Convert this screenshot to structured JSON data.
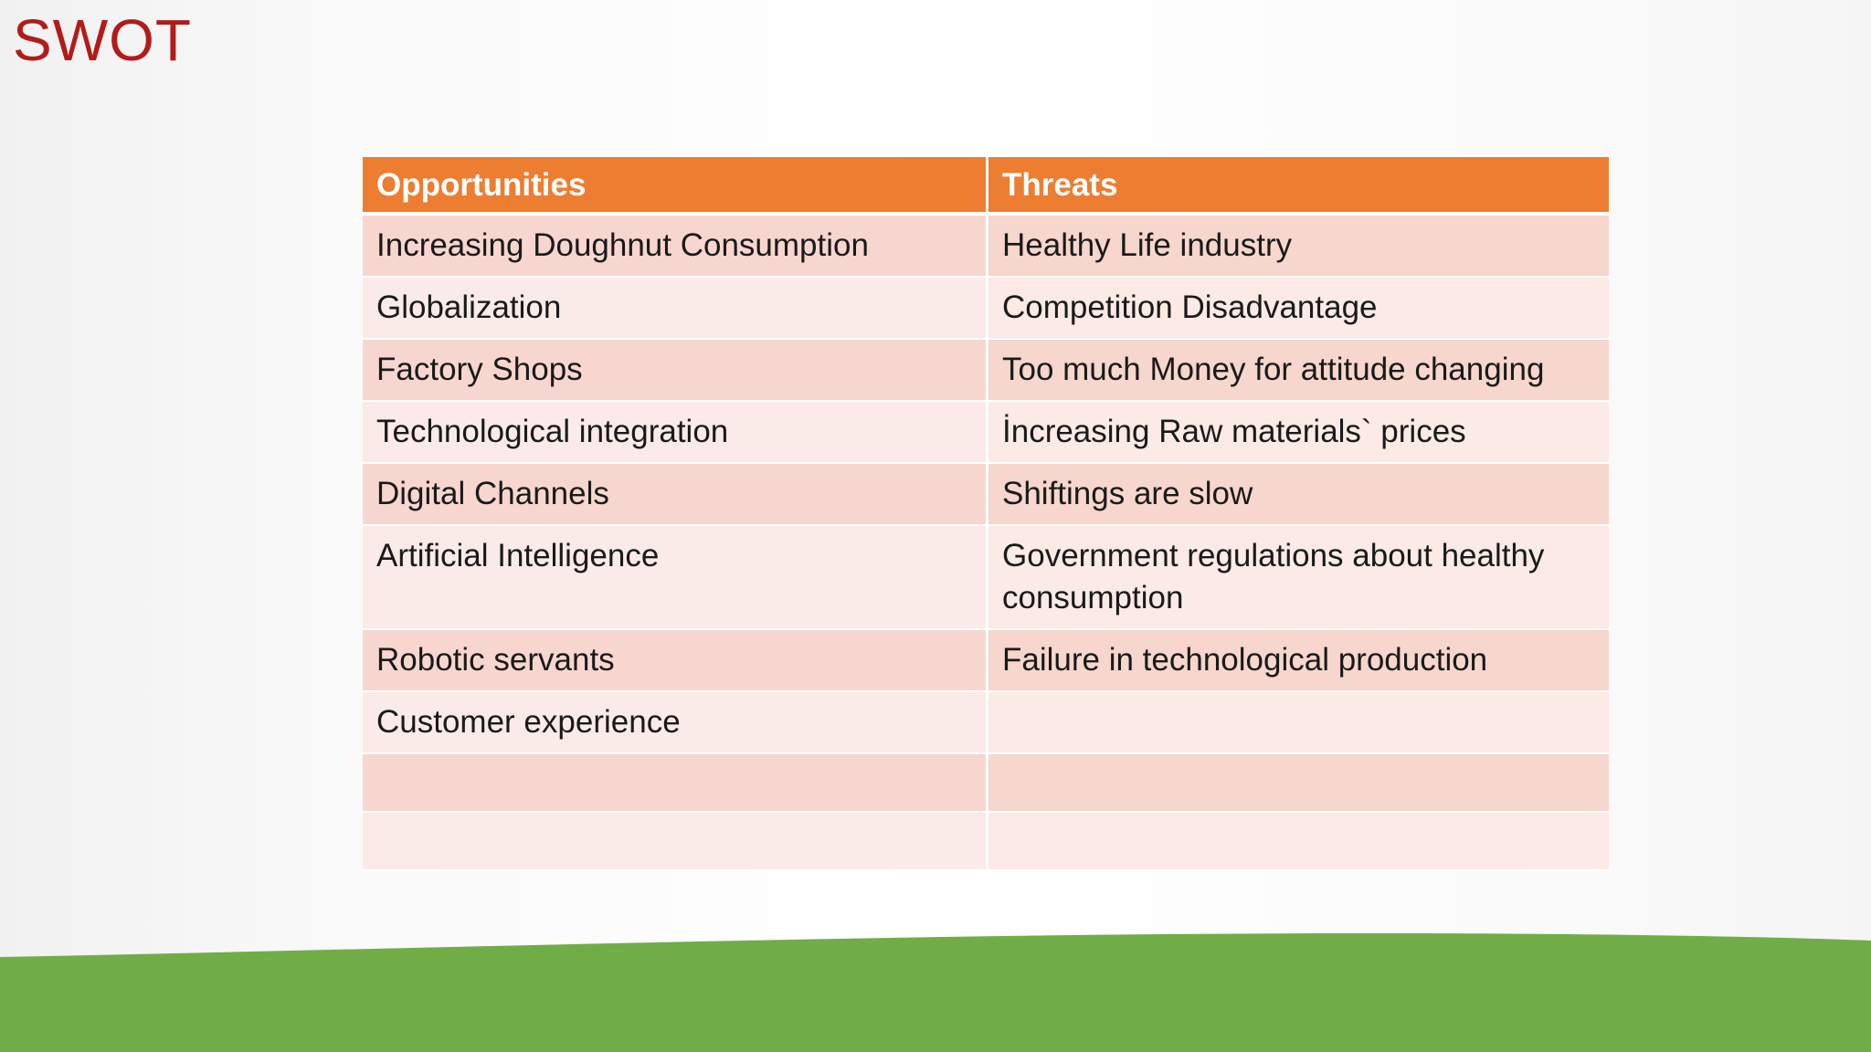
{
  "slide": {
    "title": "SWOT",
    "accent_color": "#b31b1b",
    "header_color": "#ed7d31",
    "footer_color": "#70ad47"
  },
  "table": {
    "headers": [
      "Opportunities",
      "Threats"
    ],
    "rows": [
      [
        "Increasing Doughnut Consumption",
        "Healthy Life industry"
      ],
      [
        "Globalization",
        "Competition Disadvantage"
      ],
      [
        "Factory Shops",
        "Too much Money for attitude changing"
      ],
      [
        "Technological integration",
        "İncreasing Raw materials` prices"
      ],
      [
        "Digital Channels",
        "Shiftings are slow"
      ],
      [
        "Artificial Intelligence",
        "Government regulations about healthy consumption"
      ],
      [
        "Robotic servants",
        "Failure in technological production"
      ],
      [
        "Customer experience",
        ""
      ],
      [
        "",
        ""
      ],
      [
        "",
        ""
      ]
    ]
  }
}
